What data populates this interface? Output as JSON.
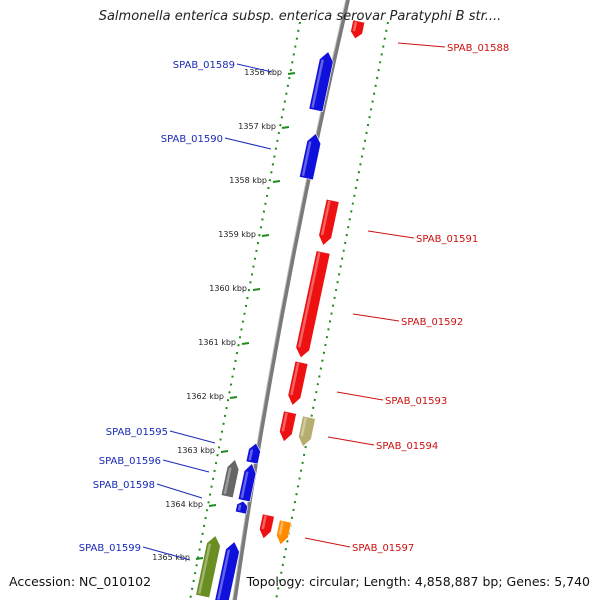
{
  "title": "Salmonella enterica subsp. enterica serovar Paratyphi B str....",
  "footer": {
    "accession": "Accession: NC_010102",
    "summary": "Topology: circular; Length: 4,858,887 bp; Genes: 5,740"
  },
  "colors": {
    "backbone": "#7a7a7a",
    "track_dots": "#1f8a1f",
    "left_label": "#1a2ab8",
    "right_label": "#cc1111",
    "gene_blue": "#1010dd",
    "gene_red": "#ee1111",
    "gene_grey": "#666666",
    "gene_olive": "#6b8e23",
    "gene_tan": "#b5ae70",
    "gene_orange": "#ff8c00"
  },
  "scale_ticks": [
    {
      "label": "1356 kbp"
    },
    {
      "label": "1357 kbp"
    },
    {
      "label": "1358 kbp"
    },
    {
      "label": "1359 kbp"
    },
    {
      "label": "1360 kbp"
    },
    {
      "label": "1361 kbp"
    },
    {
      "label": "1362 kbp"
    },
    {
      "label": "1363 kbp"
    },
    {
      "label": "1364 kbp"
    },
    {
      "label": "1365 kbp"
    }
  ],
  "genes": [
    {
      "name": "SPAB_01588",
      "strand": "forward",
      "color": "red"
    },
    {
      "name": "SPAB_01589",
      "strand": "reverse",
      "color": "blue"
    },
    {
      "name": "SPAB_01590",
      "strand": "reverse",
      "color": "blue"
    },
    {
      "name": "SPAB_01591",
      "strand": "forward",
      "color": "red"
    },
    {
      "name": "SPAB_01592",
      "strand": "forward",
      "color": "red"
    },
    {
      "name": "SPAB_01593",
      "strand": "forward",
      "color": "red"
    },
    {
      "name": "SPAB_01594",
      "strand": "forward",
      "color": "tan"
    },
    {
      "name": "SPAB_01595",
      "strand": "reverse",
      "color": "blue"
    },
    {
      "name": "SPAB_01596",
      "strand": "reverse",
      "color": "grey"
    },
    {
      "name": "SPAB_01597",
      "strand": "forward",
      "color": "orange"
    },
    {
      "name": "SPAB_01598",
      "strand": "reverse",
      "color": "blue"
    },
    {
      "name": "SPAB_01599",
      "strand": "reverse",
      "color": "olive"
    }
  ]
}
